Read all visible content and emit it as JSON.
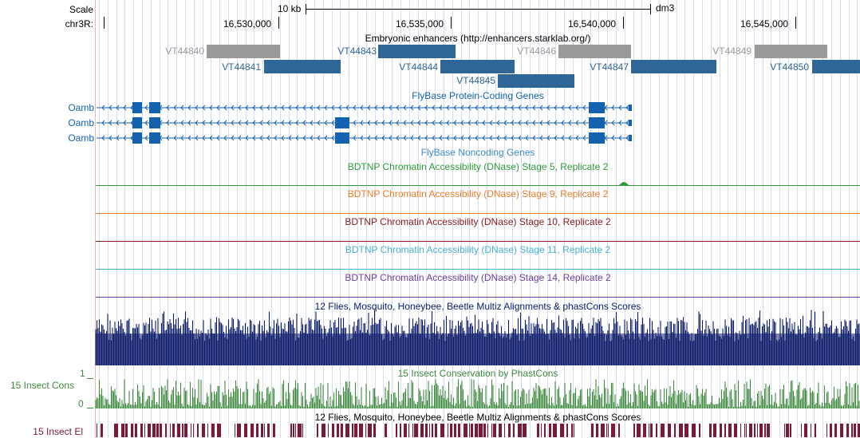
{
  "ruler": {
    "scale_label": "Scale",
    "chrom_label": "chr3R:",
    "scale_bar_text": "10 kb",
    "assembly": "dm3",
    "positions": [
      "16,530,000",
      "16,535,000",
      "16,540,000",
      "16,545,000"
    ]
  },
  "tracks": {
    "enhancers": {
      "title": "Embryonic enhancers (http://enhancers.starklab.org/)",
      "items": [
        {
          "name": "VT44840",
          "color": "#9a9a9a"
        },
        {
          "name": "VT44841",
          "color": "#2f6698"
        },
        {
          "name": "VT44843",
          "color": "#2f6698"
        },
        {
          "name": "VT44844",
          "color": "#2f6698"
        },
        {
          "name": "VT44845",
          "color": "#2f6698"
        },
        {
          "name": "VT44846",
          "color": "#9a9a9a"
        },
        {
          "name": "VT44847",
          "color": "#2f6698"
        },
        {
          "name": "VT44849",
          "color": "#9a9a9a"
        },
        {
          "name": "VT44850",
          "color": "#2f6698"
        }
      ]
    },
    "coding_genes": {
      "title": "FlyBase Protein-Coding Genes",
      "color": "#1461b0",
      "transcripts": [
        {
          "name": "Oamb"
        },
        {
          "name": "Oamb"
        },
        {
          "name": "Oamb"
        }
      ]
    },
    "noncoding_genes": {
      "title": "FlyBase Noncoding Genes",
      "color": "#3c8ac8"
    },
    "dnase": [
      {
        "title": "BDTNP Chromatin Accessibility (DNase) Stage 5, Replicate 2",
        "color": "#2e9b3a"
      },
      {
        "title": "BDTNP Chromatin Accessibility (DNase) Stage 9, Replicate 2",
        "color": "#ec7d2a"
      },
      {
        "title": "BDTNP Chromatin Accessibility (DNase) Stage 10, Replicate 2",
        "color": "#8b1a1a"
      },
      {
        "title": "BDTNP Chromatin Accessibility (DNase) Stage 11, Replicate 2",
        "color": "#4ab0d6"
      },
      {
        "title": "BDTNP Chromatin Accessibility (DNase) Stage 14, Replicate 2",
        "color": "#6b3fa0"
      }
    ],
    "multiz": {
      "title": "12 Flies, Mosquito, Honeybee, Beetle Multiz Alignments & phastCons Scores",
      "color": "#0c1c6a"
    },
    "phastcons": {
      "title": "15 Insect Conservation by PhastCons",
      "side_label": "15 Insect Cons",
      "axis_max": "1",
      "axis_min": "0",
      "color": "#3f8a3f"
    },
    "elements": {
      "title": "12 Flies, Mosquito, Honeybee, Beetle Multiz Alignments & phastCons Scores",
      "side_label": "15 Insect El",
      "color": "#7a1a36"
    }
  }
}
